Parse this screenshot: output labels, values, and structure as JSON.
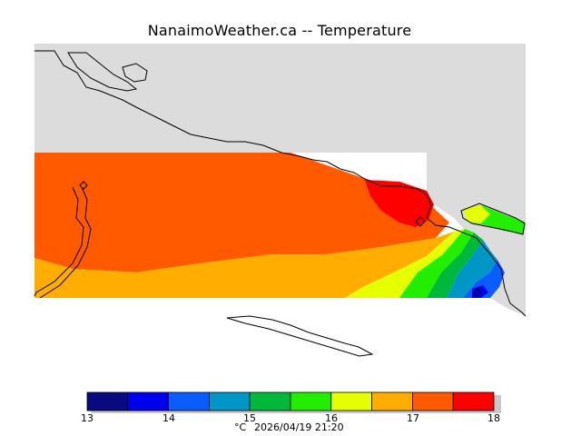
{
  "header": {
    "title": "NanaimoWeather.ca -- Temperature"
  },
  "legend": {
    "ticks": [
      "13",
      "14",
      "15",
      "16",
      "17",
      "18"
    ],
    "unit": "°C",
    "timestamp": "2026/04/19 21:20",
    "bins": [
      {
        "from": 13.0,
        "to": 13.5,
        "color": "#0a0a80"
      },
      {
        "from": 13.5,
        "to": 14.0,
        "color": "#0000ee"
      },
      {
        "from": 14.0,
        "to": 14.5,
        "color": "#0a5cff"
      },
      {
        "from": 14.5,
        "to": 15.0,
        "color": "#0097c6"
      },
      {
        "from": 15.0,
        "to": 15.5,
        "color": "#00b83a"
      },
      {
        "from": 15.5,
        "to": 16.0,
        "color": "#22ee00"
      },
      {
        "from": 16.0,
        "to": 16.5,
        "color": "#e6ff00"
      },
      {
        "from": 16.5,
        "to": 17.0,
        "color": "#ffae00"
      },
      {
        "from": 17.0,
        "to": 17.5,
        "color": "#ff5a00"
      },
      {
        "from": 17.5,
        "to": 18.0,
        "color": "#ff0000"
      }
    ]
  },
  "colors": {
    "land": "#dcdcdc",
    "coast": "#000000",
    "background": "#ffffff"
  }
}
